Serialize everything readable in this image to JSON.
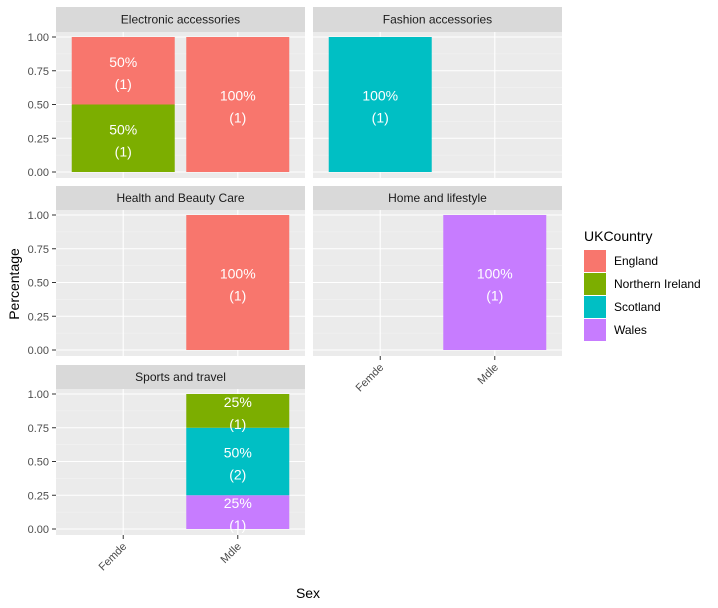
{
  "chart_data": {
    "type": "bar",
    "stacked": true,
    "facet_layout": "wrap-2-columns",
    "xlabel": "Sex",
    "ylabel": "Percentage",
    "ylim": [
      0,
      1
    ],
    "y_ticks": [
      "0.00",
      "0.25",
      "0.50",
      "0.75",
      "1.00"
    ],
    "y_tick_values": [
      0,
      0.25,
      0.5,
      0.75,
      1
    ],
    "categories": [
      "Female",
      "Male"
    ],
    "category_tick_labels": [
      "Femde",
      "Mdle"
    ],
    "legend": {
      "title": "UKCountry",
      "placement": "right",
      "entries": [
        {
          "name": "England",
          "color": "#F8766D"
        },
        {
          "name": "Northern Ireland",
          "color": "#7CAE00"
        },
        {
          "name": "Scotland",
          "color": "#00BFC4"
        },
        {
          "name": "Wales",
          "color": "#C77CFF"
        }
      ]
    },
    "panels": [
      {
        "title": "Electronic accessories",
        "stacks": [
          {
            "category": "Female",
            "segments": [
              {
                "country": "England",
                "value": 0.5,
                "pct": "50%",
                "count": "(1)"
              },
              {
                "country": "Northern Ireland",
                "value": 0.5,
                "pct": "50%",
                "count": "(1)"
              }
            ]
          },
          {
            "category": "Male",
            "segments": [
              {
                "country": "England",
                "value": 1.0,
                "pct": "100%",
                "count": "(1)"
              }
            ]
          }
        ]
      },
      {
        "title": "Fashion accessories",
        "stacks": [
          {
            "category": "Female",
            "segments": [
              {
                "country": "Scotland",
                "value": 1.0,
                "pct": "100%",
                "count": "(1)"
              }
            ]
          }
        ]
      },
      {
        "title": "Health and Beauty Care",
        "stacks": [
          {
            "category": "Male",
            "segments": [
              {
                "country": "England",
                "value": 1.0,
                "pct": "100%",
                "count": "(1)"
              }
            ]
          }
        ]
      },
      {
        "title": "Home and lifestyle",
        "stacks": [
          {
            "category": "Male",
            "segments": [
              {
                "country": "Wales",
                "value": 1.0,
                "pct": "100%",
                "count": "(1)"
              }
            ]
          }
        ]
      },
      {
        "title": "Sports and travel",
        "stacks": [
          {
            "category": "Male",
            "segments": [
              {
                "country": "Northern Ireland",
                "value": 0.25,
                "pct": "25%",
                "count": "(1)"
              },
              {
                "country": "Scotland",
                "value": 0.5,
                "pct": "50%",
                "count": "(2)"
              },
              {
                "country": "Wales",
                "value": 0.25,
                "pct": "25%",
                "count": "(1)"
              }
            ]
          }
        ]
      }
    ]
  }
}
